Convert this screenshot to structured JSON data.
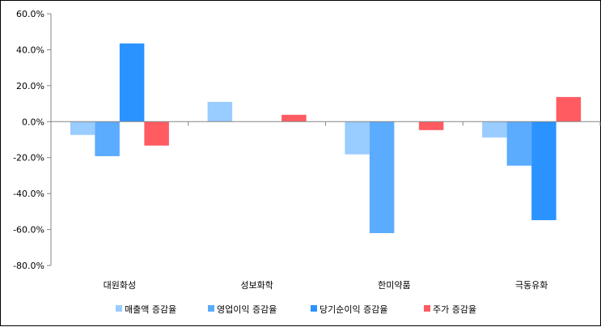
{
  "chart_data": {
    "type": "bar",
    "title": "",
    "xlabel": "",
    "ylabel": "",
    "categories": [
      "대원화성",
      "성보화학",
      "한미약품",
      "극동유화"
    ],
    "series": [
      {
        "name": "매출액 증감율",
        "color": "#99CCFF",
        "values": [
          -7.4,
          11.0,
          -18.2,
          -8.8
        ]
      },
      {
        "name": "영업이익 증감율",
        "color": "#5BABFF",
        "values": [
          -19.2,
          0,
          -62.0,
          -24.5
        ]
      },
      {
        "name": "당기순이익 증감율",
        "color": "#2A93FF",
        "values": [
          43.5,
          0,
          0,
          -54.8
        ]
      },
      {
        "name": "주가 증감율",
        "color": "#FF5B61",
        "values": [
          -13.3,
          3.8,
          -4.7,
          13.7
        ]
      }
    ],
    "ylim": [
      -80,
      60
    ],
    "yticks": [
      60,
      40,
      20,
      0,
      -20,
      -40,
      -60,
      -80
    ],
    "ytick_labels": [
      "60.0%",
      "40.0%",
      "20.0%",
      "0.0%",
      "-20.0%",
      "-40.0%",
      "-60.0%",
      "-80.0%"
    ],
    "grid": false,
    "legend_position": "bottom"
  }
}
